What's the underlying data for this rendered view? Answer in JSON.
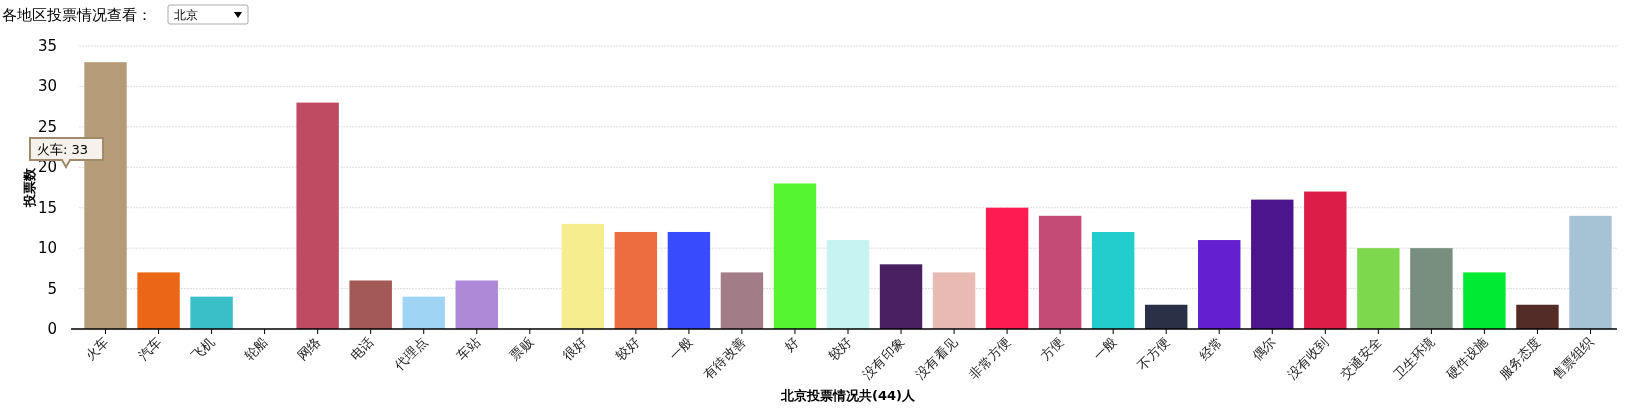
{
  "chart_data": {
    "type": "bar",
    "title": "各地区投票情况查看：",
    "subtitle": "北京",
    "xlabel": "北京投票情况共(44)人",
    "ylabel": "投票数",
    "categories": [
      "火车",
      "汽车",
      "飞机",
      "轮船",
      "网络",
      "电话",
      "代理点",
      "车站",
      "票贩",
      "很好",
      "较好",
      "一般",
      "有待改善",
      "好",
      "较好",
      "没有印象",
      "没有看见",
      "非常方便",
      "方便",
      "一般",
      "不方便",
      "经常",
      "偶尔",
      "没有收到",
      "交通安全",
      "卫生环境",
      "硬件设施",
      "服务态度",
      "售票组织"
    ],
    "values": [
      33,
      7,
      4,
      0,
      28,
      6,
      4,
      6,
      0,
      13,
      12,
      12,
      7,
      18,
      11,
      8,
      7,
      15,
      14,
      12,
      3,
      11,
      16,
      17,
      10,
      10,
      7,
      3,
      14
    ],
    "colors": [
      "#b59b77",
      "#eb6717",
      "#3abec8",
      "#a3b24e",
      "#bf4b63",
      "#a35a56",
      "#a0d4f5",
      "#ae89d8",
      "#5c1a10",
      "#f6ed8f",
      "#ec6d40",
      "#384bfd",
      "#a27c86",
      "#55f531",
      "#c5f4f3",
      "#4a2062",
      "#e9bab3",
      "#fd1b52",
      "#c44b76",
      "#22cdcd",
      "#2c3046",
      "#641fcf",
      "#4c148d",
      "#dc1d48",
      "#7ed84d",
      "#788e7e",
      "#00e933",
      "#532c28",
      "#a6c3d6"
    ],
    "ylim": [
      0,
      35
    ],
    "yticks": [
      0,
      5,
      10,
      15,
      20,
      25,
      30,
      35
    ],
    "grid": "y",
    "annotations": [
      "火车: 33"
    ]
  }
}
